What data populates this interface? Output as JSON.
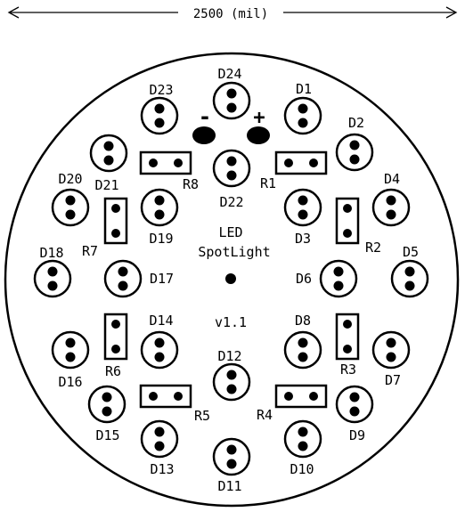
{
  "dimension": {
    "label": "2500 (mil)"
  },
  "power": {
    "minus": "-",
    "plus": "+"
  },
  "center_label": {
    "line1": "LED",
    "line2": "SpotLight"
  },
  "version": "v1.1",
  "leds": [
    {
      "id": "D24"
    },
    {
      "id": "D1"
    },
    {
      "id": "D23"
    },
    {
      "id": "D2"
    },
    {
      "id": "D22"
    },
    {
      "id": "D20"
    },
    {
      "id": "D21"
    },
    {
      "id": "D4"
    },
    {
      "id": "D19"
    },
    {
      "id": "D3"
    },
    {
      "id": "D18"
    },
    {
      "id": "D5"
    },
    {
      "id": "D17"
    },
    {
      "id": "D6"
    },
    {
      "id": "D14"
    },
    {
      "id": "D8"
    },
    {
      "id": "D12"
    },
    {
      "id": "D16"
    },
    {
      "id": "D7"
    },
    {
      "id": "D15"
    },
    {
      "id": "D9"
    },
    {
      "id": "D13"
    },
    {
      "id": "D10"
    },
    {
      "id": "D11"
    }
  ],
  "resistors": [
    {
      "id": "R8"
    },
    {
      "id": "R1"
    },
    {
      "id": "R7"
    },
    {
      "id": "R2"
    },
    {
      "id": "R6"
    },
    {
      "id": "R3"
    },
    {
      "id": "R5"
    },
    {
      "id": "R4"
    }
  ],
  "colors": {
    "ink": "#000000",
    "background": "#ffffff"
  }
}
